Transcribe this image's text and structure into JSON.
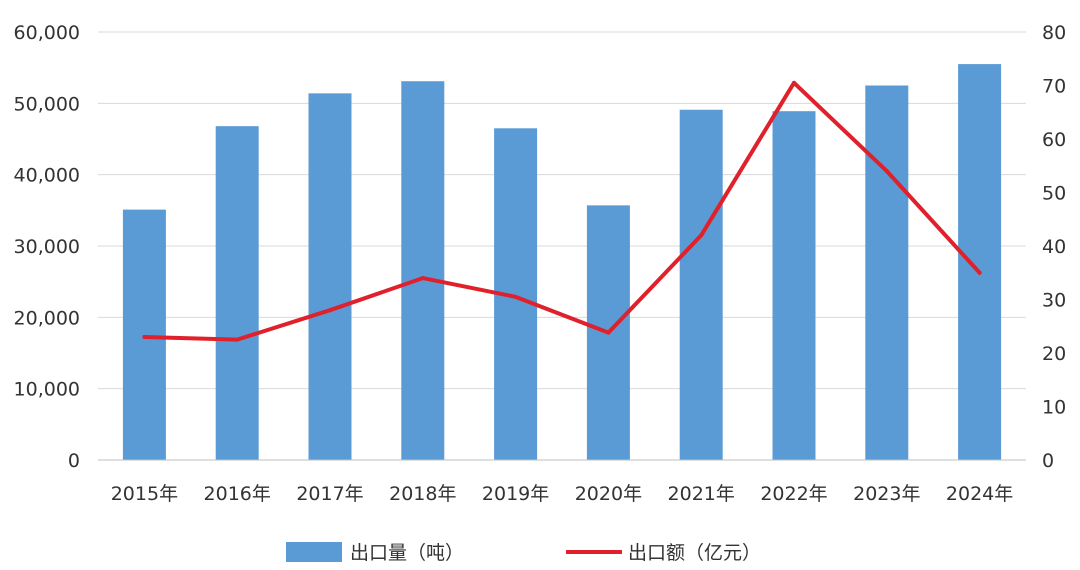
{
  "chart_data": {
    "type": "bar",
    "categories": [
      "2015年",
      "2016年",
      "2017年",
      "2018年",
      "2019年",
      "2020年",
      "2021年",
      "2022年",
      "2023年",
      "2024年"
    ],
    "series": [
      {
        "name": "出口量（吨）",
        "type": "bar",
        "axis": "left",
        "color": "#5b9bd5",
        "values": [
          35100,
          46800,
          51400,
          53100,
          46500,
          35700,
          49100,
          48900,
          52500,
          55500
        ]
      },
      {
        "name": "出口额（亿元）",
        "type": "line",
        "axis": "right",
        "color": "#e0202a",
        "values": [
          23,
          22.5,
          28,
          34,
          30.5,
          23.8,
          42,
          70.5,
          54,
          35
        ]
      }
    ],
    "y_left": {
      "range": [
        0,
        60000
      ],
      "ticks": [
        0,
        10000,
        20000,
        30000,
        40000,
        50000,
        60000
      ],
      "tick_labels": [
        "0",
        "10,000",
        "20,000",
        "30,000",
        "40,000",
        "50,000",
        "60,000"
      ]
    },
    "y_right": {
      "range": [
        0,
        80
      ],
      "ticks": [
        0,
        10,
        20,
        30,
        40,
        50,
        60,
        70,
        80
      ],
      "tick_labels": [
        "0",
        "10",
        "20",
        "30",
        "40",
        "50",
        "60",
        "70",
        "80"
      ]
    },
    "grid": true,
    "legend_position": "bottom",
    "title": "",
    "xlabel": "",
    "ylabel": ""
  }
}
